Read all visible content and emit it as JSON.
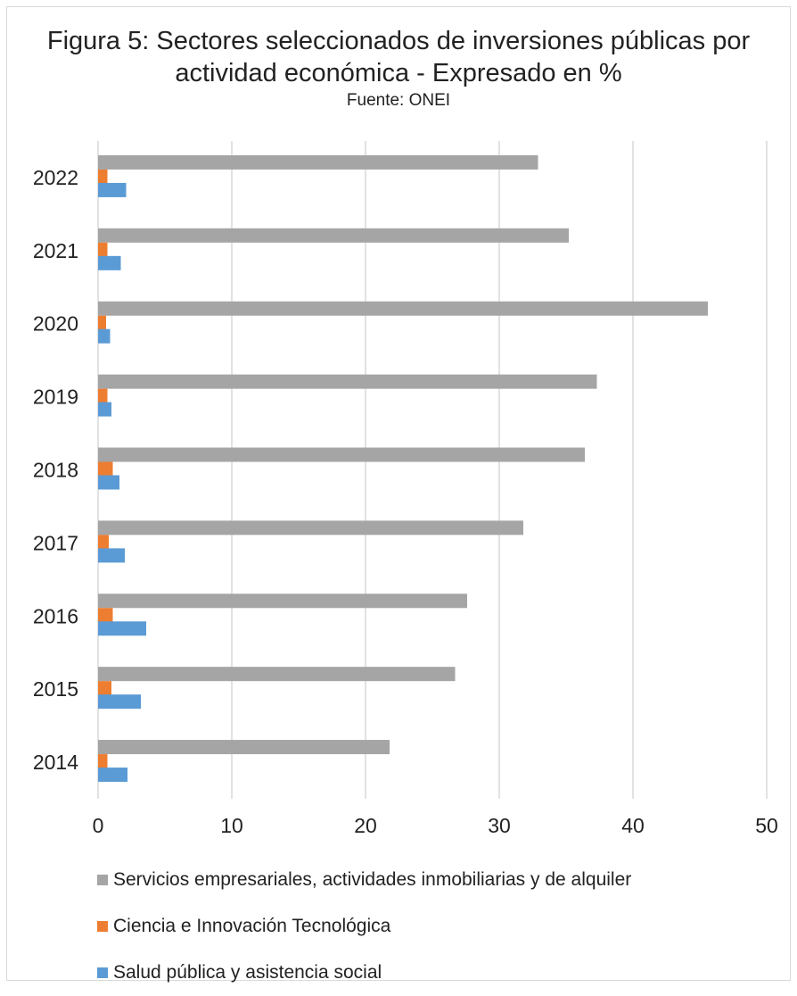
{
  "chart_data": {
    "type": "bar",
    "orientation": "horizontal",
    "title": "Figura 5: Sectores seleccionados de inversiones públicas por actividad económica - Expresado en %",
    "subtitle": "Fuente: ONEI",
    "categories": [
      "2022",
      "2021",
      "2020",
      "2019",
      "2018",
      "2017",
      "2016",
      "2015",
      "2014"
    ],
    "series": [
      {
        "name": "Servicios empresariales, actividades inmobiliarias y de alquiler",
        "color": "#a5a5a5",
        "values": [
          32.9,
          35.2,
          45.6,
          37.3,
          36.4,
          31.8,
          27.6,
          26.7,
          21.8
        ]
      },
      {
        "name": "Ciencia e Innovación Tecnológica",
        "color": "#ed7d31",
        "values": [
          0.7,
          0.7,
          0.6,
          0.7,
          1.1,
          0.8,
          1.1,
          1.0,
          0.7
        ]
      },
      {
        "name": "Salud pública y asistencia social",
        "color": "#5b9bd5",
        "values": [
          2.1,
          1.7,
          0.9,
          1.0,
          1.6,
          2.0,
          3.6,
          3.2,
          2.2
        ]
      }
    ],
    "xlim": [
      0,
      50
    ],
    "xticks": [
      0,
      10,
      20,
      30,
      40,
      50
    ],
    "grid": "vertical",
    "legend_position": "bottom"
  }
}
